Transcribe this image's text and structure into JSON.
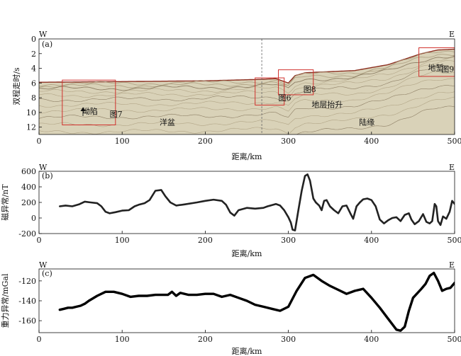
{
  "chart_data": [
    {
      "type": "seismic-section",
      "panel_label": "(a)",
      "west_label": "W",
      "east_label": "E",
      "xlabel": "距离/km",
      "ylabel": "双程走时/s",
      "xlim": [
        0,
        500
      ],
      "ylim": [
        0,
        13
      ],
      "x_ticks": [
        "0",
        "100",
        "200",
        "300",
        "400",
        "500"
      ],
      "y_ticks": [
        "0",
        "2",
        "4",
        "6",
        "8",
        "10",
        "12"
      ],
      "seafloor": [
        [
          0,
          5.9
        ],
        [
          100,
          5.8
        ],
        [
          200,
          5.7
        ],
        [
          268,
          5.5
        ],
        [
          285,
          5.4
        ],
        [
          300,
          6.0
        ],
        [
          308,
          5.0
        ],
        [
          320,
          4.6
        ],
        [
          380,
          4.3
        ],
        [
          420,
          3.5
        ],
        [
          460,
          2.0
        ],
        [
          480,
          1.5
        ],
        [
          500,
          1.4
        ]
      ],
      "divider_x": 268,
      "annotations": [
        {
          "text": "坳陷",
          "x": 52,
          "y": 10.2
        },
        {
          "text": "图7",
          "x": 85,
          "y": 10.6
        },
        {
          "text": "洋盆",
          "x": 145,
          "y": 11.7
        },
        {
          "text": "图6",
          "x": 288,
          "y": 8.4
        },
        {
          "text": "图8",
          "x": 318,
          "y": 7.2
        },
        {
          "text": "地层抬升",
          "x": 328,
          "y": 9.3
        },
        {
          "text": "陆缘",
          "x": 385,
          "y": 11.7
        },
        {
          "text": "地堑",
          "x": 468,
          "y": 4.3
        },
        {
          "text": "图9",
          "x": 484,
          "y": 4.5
        }
      ],
      "boxes": [
        {
          "label": "图7",
          "x0": 28,
          "x1": 92,
          "y0": 5.6,
          "y1": 11.7
        },
        {
          "label": "图6",
          "x0": 260,
          "x1": 295,
          "y0": 5.3,
          "y1": 9.0
        },
        {
          "label": "图8",
          "x0": 288,
          "x1": 330,
          "y0": 4.2,
          "y1": 7.6
        },
        {
          "label": "图9",
          "x0": 457,
          "x1": 500,
          "y0": 1.2,
          "y1": 5.1
        }
      ]
    },
    {
      "type": "line",
      "panel_label": "(b)",
      "west_label": "W",
      "east_label": "E",
      "xlabel": "距离/km",
      "ylabel": "磁异常/nT",
      "xlim": [
        0,
        500
      ],
      "ylim": [
        -200,
        600
      ],
      "x_ticks": [
        "0",
        "100",
        "200",
        "300",
        "400",
        "500"
      ],
      "y_ticks": [
        "600",
        "400",
        "200",
        "0",
        "-200"
      ],
      "series": [
        {
          "x": [
            25,
            32,
            40,
            48,
            55,
            62,
            70,
            75,
            80,
            85,
            92,
            100,
            108,
            115,
            120,
            127,
            133,
            140,
            147,
            152,
            158,
            165,
            175,
            190,
            200,
            210,
            220,
            225,
            230,
            235,
            240,
            250,
            260,
            270,
            275,
            280,
            285,
            290,
            295,
            300,
            303,
            305,
            308,
            312,
            316,
            320,
            323,
            326,
            330,
            333,
            337,
            340,
            343,
            346,
            350,
            355,
            360,
            365,
            370,
            375,
            378,
            382,
            386,
            390,
            395,
            400,
            405,
            410,
            415,
            420,
            425,
            430,
            435,
            440,
            445,
            448,
            452,
            457,
            462,
            466,
            470,
            473,
            476,
            478,
            480,
            483,
            486,
            490,
            494,
            497,
            500
          ],
          "y": [
            150,
            160,
            150,
            175,
            210,
            200,
            190,
            150,
            80,
            60,
            75,
            95,
            100,
            150,
            170,
            190,
            230,
            350,
            360,
            280,
            200,
            160,
            175,
            200,
            220,
            235,
            220,
            170,
            70,
            30,
            100,
            130,
            120,
            130,
            150,
            165,
            180,
            160,
            100,
            10,
            -60,
            -150,
            -160,
            100,
            350,
            540,
            560,
            480,
            250,
            200,
            160,
            100,
            220,
            230,
            150,
            100,
            60,
            150,
            160,
            50,
            -10,
            150,
            200,
            240,
            250,
            230,
            150,
            -20,
            -70,
            -30,
            0,
            10,
            -40,
            40,
            60,
            -20,
            -80,
            -40,
            50,
            -50,
            -70,
            -40,
            180,
            150,
            -40,
            -90,
            20,
            -10,
            80,
            220,
            180
          ]
        }
      ]
    },
    {
      "type": "line",
      "panel_label": "(c)",
      "west_label": "W",
      "east_label": "E",
      "xlabel": "距离/km",
      "ylabel": "重力异常/mGal",
      "xlim": [
        0,
        500
      ],
      "ylim": [
        -172,
        -108
      ],
      "x_ticks": [
        "0",
        "100",
        "200",
        "300",
        "400",
        "500"
      ],
      "y_ticks": [
        "-120",
        "-140",
        "-160"
      ],
      "series": [
        {
          "x": [
            25,
            30,
            35,
            40,
            45,
            50,
            55,
            60,
            70,
            80,
            90,
            100,
            110,
            120,
            130,
            140,
            150,
            155,
            160,
            165,
            170,
            180,
            190,
            200,
            210,
            220,
            230,
            240,
            250,
            260,
            270,
            280,
            290,
            300,
            310,
            320,
            330,
            340,
            350,
            360,
            370,
            380,
            390,
            400,
            410,
            420,
            430,
            435,
            440,
            445,
            450,
            460,
            465,
            470,
            475,
            480,
            485,
            490,
            495,
            500
          ],
          "y": [
            -149,
            -148,
            -147,
            -147,
            -146,
            -145,
            -143,
            -140,
            -135,
            -131,
            -131,
            -133,
            -136,
            -135,
            -135,
            -134,
            -134,
            -134,
            -131,
            -135,
            -132,
            -134,
            -134,
            -133,
            -133,
            -136,
            -134,
            -137,
            -140,
            -144,
            -146,
            -148,
            -150,
            -146,
            -130,
            -117,
            -114,
            -120,
            -125,
            -129,
            -133,
            -130,
            -128,
            -137,
            -147,
            -158,
            -169,
            -170,
            -166,
            -150,
            -137,
            -128,
            -123,
            -115,
            -112,
            -120,
            -130,
            -128,
            -127,
            -122
          ]
        }
      ]
    }
  ]
}
